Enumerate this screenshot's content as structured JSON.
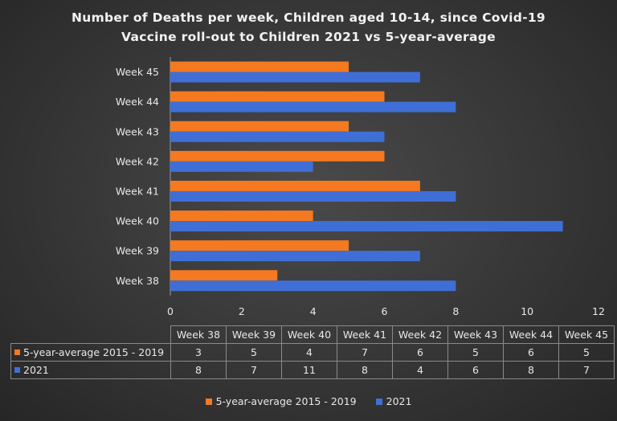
{
  "chart_data": {
    "type": "bar",
    "orientation": "horizontal",
    "title_lines": [
      "Number of Deaths per week, Children aged 10-14, since Covid-19",
      "Vaccine  roll-out to Children 2021 vs 5-year-average"
    ],
    "categories": [
      "Week 38",
      "Week 39",
      "Week 40",
      "Week 41",
      "Week 42",
      "Week 43",
      "Week 44",
      "Week 45"
    ],
    "series": [
      {
        "name": "5-year-average 2015 - 2019",
        "values": [
          3,
          5,
          4,
          7,
          6,
          5,
          6,
          5
        ],
        "color": "#f47920"
      },
      {
        "name": "2021",
        "values": [
          8,
          7,
          11,
          8,
          4,
          6,
          8,
          7
        ],
        "color": "#3f6fd6"
      }
    ],
    "xlim": [
      0,
      12
    ],
    "x_ticks": [
      "0",
      "2",
      "4",
      "6",
      "8",
      "10",
      "12"
    ],
    "xlabel": "",
    "ylabel": "",
    "grid": false,
    "legend_position": "bottom",
    "data_table": true
  }
}
